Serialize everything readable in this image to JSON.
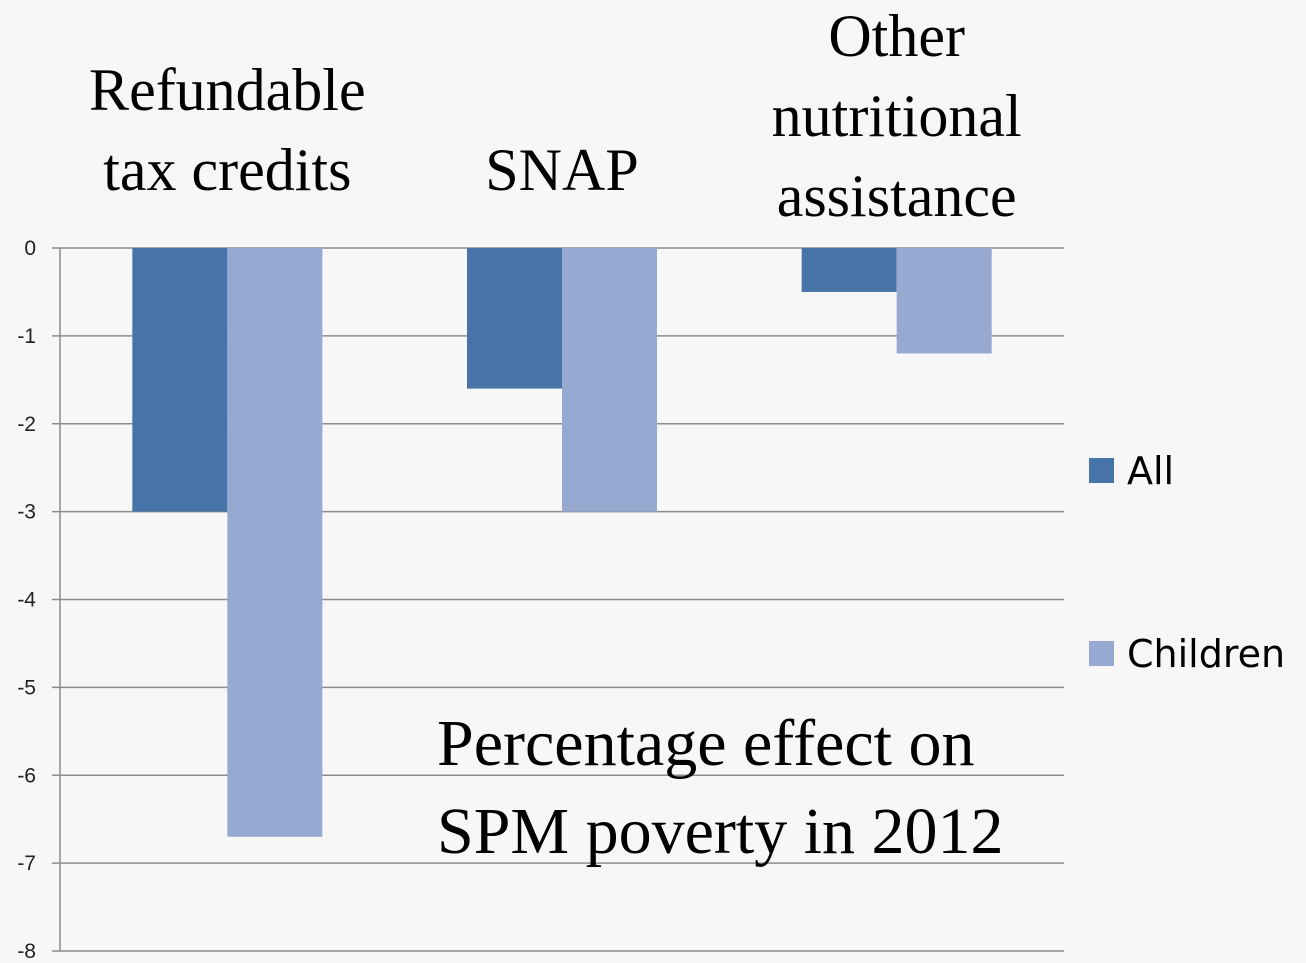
{
  "chart_data": {
    "type": "bar",
    "categories": [
      [
        "Refundable",
        "tax credits"
      ],
      [
        "SNAP"
      ],
      [
        "Other",
        "nutritional",
        "assistance"
      ]
    ],
    "series": [
      {
        "name": "All",
        "values": [
          -3.0,
          -1.6,
          -0.5
        ],
        "color": "#4673a8"
      },
      {
        "name": "Children",
        "values": [
          -6.7,
          -3.0,
          -1.2
        ],
        "color": "#95a9d1"
      }
    ],
    "annotation": [
      "Percentage effect on",
      "SPM poverty in 2012"
    ],
    "ylim": [
      -8,
      0
    ],
    "yticks": [
      0,
      -1,
      -2,
      -3,
      -4,
      -5,
      -6,
      -7,
      -8
    ],
    "grid": true,
    "legend_position": "right",
    "gridline_color": "#8c8c8c"
  }
}
